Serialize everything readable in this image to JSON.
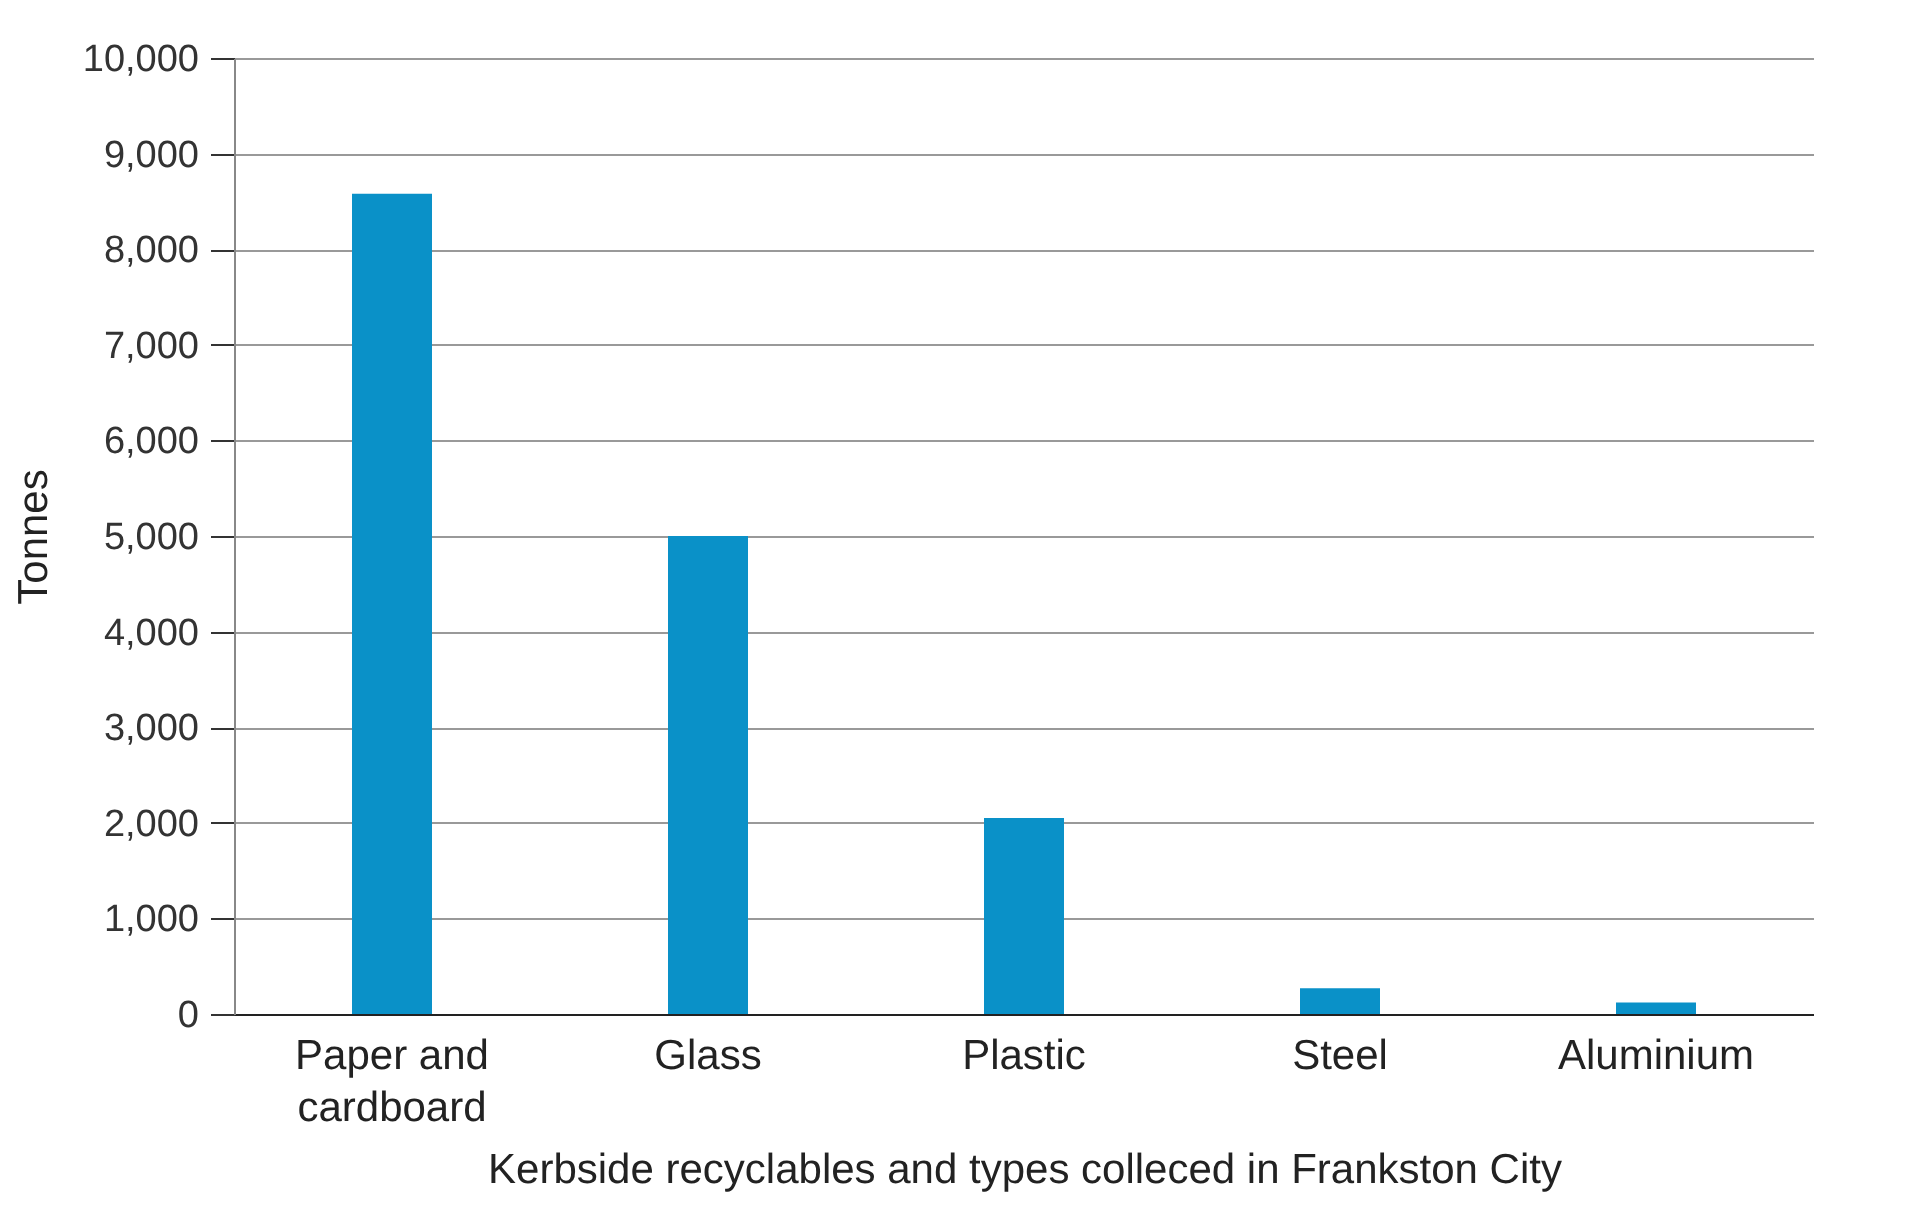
{
  "chart_data": {
    "type": "bar",
    "xlabel": "Kerbside recyclables and types colleced in Frankston City",
    "ylabel": "Tonnes",
    "categories": [
      "Paper and cardboard",
      "Glass",
      "Plastic",
      "Steel",
      "Aluminium"
    ],
    "values": [
      8580,
      5000,
      2050,
      270,
      120
    ],
    "color": "#0a91c8",
    "ylim": [
      0,
      10000
    ],
    "yticks": [
      0,
      {
        "value": 1000,
        "label": "1,000"
      },
      {
        "value": 2000,
        "label": "2,000"
      },
      {
        "value": 3000,
        "label": "3,000"
      },
      {
        "value": 4000,
        "label": "4,000"
      },
      {
        "value": 5000,
        "label": "5,000"
      },
      {
        "value": 6000,
        "label": "6,000"
      },
      {
        "value": 7000,
        "label": "7,000"
      },
      {
        "value": 8000,
        "label": "8,000"
      },
      {
        "value": 9000,
        "label": "9,000"
      },
      {
        "value": 10000,
        "label": "10,000"
      }
    ],
    "grid": "y"
  }
}
